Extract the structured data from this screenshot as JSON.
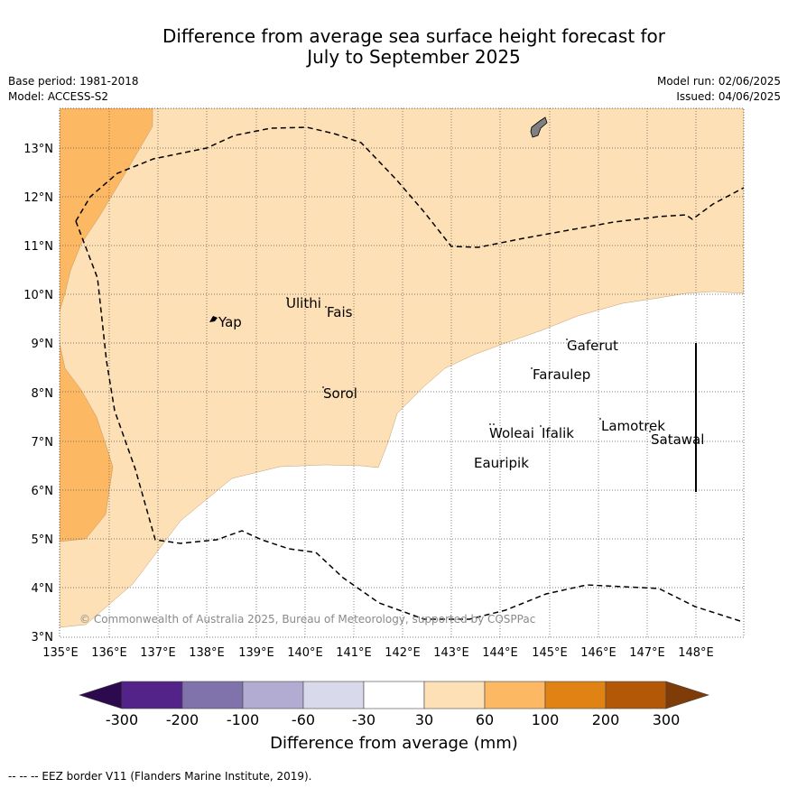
{
  "title": {
    "line1": "Difference from average sea surface height forecast for",
    "line2": "July to September 2025"
  },
  "meta": {
    "base_period": "Base period: 1981-2018",
    "model": "Model: ACCESS-S2",
    "model_run": "Model run: 02/06/2025",
    "issued": "Issued: 04/06/2025"
  },
  "map": {
    "lon_labels": [
      "135°E",
      "136°E",
      "137°E",
      "138°E",
      "139°E",
      "140°E",
      "141°E",
      "142°E",
      "143°E",
      "144°E",
      "145°E",
      "146°E",
      "147°E",
      "148°E"
    ],
    "lat_labels": [
      "13°N",
      "12°N",
      "11°N",
      "10°N",
      "9°N",
      "8°N",
      "7°N",
      "6°N",
      "5°N",
      "4°N",
      "3°N"
    ],
    "places": [
      "Yap",
      "Ulithi",
      "Fais",
      "Gaferut",
      "Faraulep",
      "Sorol",
      "Woleai",
      "Ifalik",
      "Lamotrek",
      "Satawal",
      "Eauripik"
    ],
    "copyright": "© Commonwealth of Australia 2025, Bureau of Meteorology, supported by COSPPac"
  },
  "colorbar": {
    "ticks": [
      "-300",
      "-200",
      "-100",
      "-60",
      "-30",
      "30",
      "60",
      "100",
      "200",
      "300"
    ],
    "colors": [
      "#2d0a4e",
      "#54238a",
      "#8073ac",
      "#b2abd2",
      "#d8daeb",
      "#ffffff",
      "#fee0b6",
      "#fdb863",
      "#e08214",
      "#b35806",
      "#7f3b08"
    ],
    "label": "Difference from average (mm)"
  },
  "footnote": "--  --  -- EEZ border V11 (Flanders Marine Institute, 2019)."
}
